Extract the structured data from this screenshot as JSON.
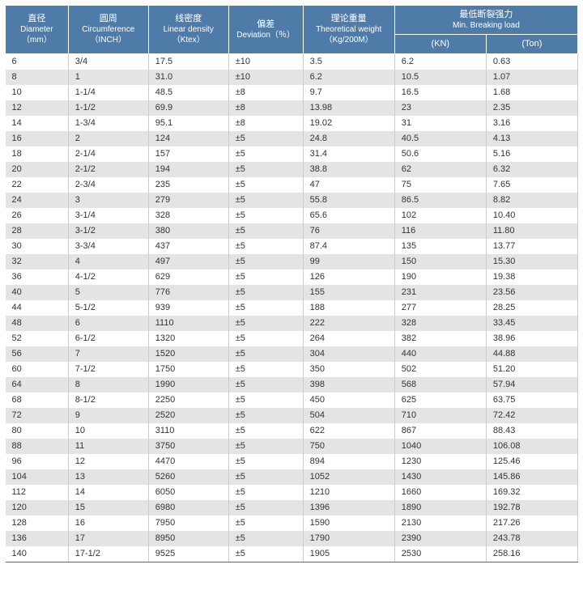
{
  "colors": {
    "header_bg": "#4f7ba8",
    "header_fg": "#ffffff",
    "row_odd": "#ffffff",
    "row_even": "#e4e4e4",
    "border": "#cccccc",
    "text": "#333333"
  },
  "headers": {
    "diameter_cn": "直径",
    "diameter_en": "Diameter",
    "diameter_unit": "（mm）",
    "circ_cn": "圆周",
    "circ_en": "Circumference",
    "circ_unit": "（INCH）",
    "density_cn": "线密度",
    "density_en": "Linear density",
    "density_unit": "（Ktex）",
    "dev_cn": "偏差",
    "dev_en": "Deviation（％）",
    "weight_cn": "理论重量",
    "weight_en": "Theoretical weight",
    "weight_unit": "（Kg/200M）",
    "break_cn": "最低断裂强力",
    "break_en": "Min. Breaking load",
    "kn": "(KN)",
    "ton": "(Ton)"
  },
  "rows": [
    [
      "6",
      "3/4",
      "17.5",
      "±10",
      "3.5",
      "6.2",
      "0.63"
    ],
    [
      "8",
      "1",
      "31.0",
      "±10",
      "6.2",
      "10.5",
      "1.07"
    ],
    [
      "10",
      "1-1/4",
      "48.5",
      "±8",
      "9.7",
      "16.5",
      "1.68"
    ],
    [
      "12",
      "1-1/2",
      "69.9",
      "±8",
      "13.98",
      "23",
      "2.35"
    ],
    [
      "14",
      "1-3/4",
      "95.1",
      "±8",
      "19.02",
      "31",
      "3.16"
    ],
    [
      "16",
      "2",
      "124",
      "±5",
      "24.8",
      "40.5",
      "4.13"
    ],
    [
      "18",
      "2-1/4",
      "157",
      "±5",
      "31.4",
      "50.6",
      "5.16"
    ],
    [
      "20",
      "2-1/2",
      "194",
      "±5",
      "38.8",
      "62",
      "6.32"
    ],
    [
      "22",
      "2-3/4",
      "235",
      "±5",
      "47",
      "75",
      "7.65"
    ],
    [
      "24",
      "3",
      "279",
      "±5",
      "55.8",
      "86.5",
      "8.82"
    ],
    [
      "26",
      "3-1/4",
      "328",
      "±5",
      "65.6",
      "102",
      "10.40"
    ],
    [
      "28",
      "3-1/2",
      "380",
      "±5",
      "76",
      "116",
      "11.80"
    ],
    [
      "30",
      "3-3/4",
      "437",
      "±5",
      "87.4",
      "135",
      "13.77"
    ],
    [
      "32",
      "4",
      "497",
      "±5",
      "99",
      "150",
      "15.30"
    ],
    [
      "36",
      "4-1/2",
      "629",
      "±5",
      "126",
      "190",
      "19.38"
    ],
    [
      "40",
      "5",
      "776",
      "±5",
      "155",
      "231",
      "23.56"
    ],
    [
      "44",
      "5-1/2",
      "939",
      "±5",
      "188",
      "277",
      "28.25"
    ],
    [
      "48",
      "6",
      "1110",
      "±5",
      "222",
      "328",
      "33.45"
    ],
    [
      "52",
      "6-1/2",
      "1320",
      "±5",
      "264",
      "382",
      "38.96"
    ],
    [
      "56",
      "7",
      "1520",
      "±5",
      "304",
      "440",
      "44.88"
    ],
    [
      "60",
      "7-1/2",
      "1750",
      "±5",
      "350",
      "502",
      "51.20"
    ],
    [
      "64",
      "8",
      "1990",
      "±5",
      "398",
      "568",
      "57.94"
    ],
    [
      "68",
      "8-1/2",
      "2250",
      "±5",
      "450",
      "625",
      "63.75"
    ],
    [
      "72",
      "9",
      "2520",
      "±5",
      "504",
      "710",
      "72.42"
    ],
    [
      "80",
      "10",
      "3110",
      "±5",
      "622",
      "867",
      "88.43"
    ],
    [
      "88",
      "11",
      "3750",
      "±5",
      "750",
      "1040",
      "106.08"
    ],
    [
      "96",
      "12",
      "4470",
      "±5",
      "894",
      "1230",
      "125.46"
    ],
    [
      "104",
      "13",
      "5260",
      "±5",
      "1052",
      "1430",
      "145.86"
    ],
    [
      "112",
      "14",
      "6050",
      "±5",
      "1210",
      "1660",
      "169.32"
    ],
    [
      "120",
      "15",
      "6980",
      "±5",
      "1396",
      "1890",
      "192.78"
    ],
    [
      "128",
      "16",
      "7950",
      "±5",
      "1590",
      "2130",
      "217.26"
    ],
    [
      "136",
      "17",
      "8950",
      "±5",
      "1790",
      "2390",
      "243.78"
    ],
    [
      "140",
      "17-1/2",
      "9525",
      "±5",
      "1905",
      "2530",
      "258.16"
    ]
  ]
}
